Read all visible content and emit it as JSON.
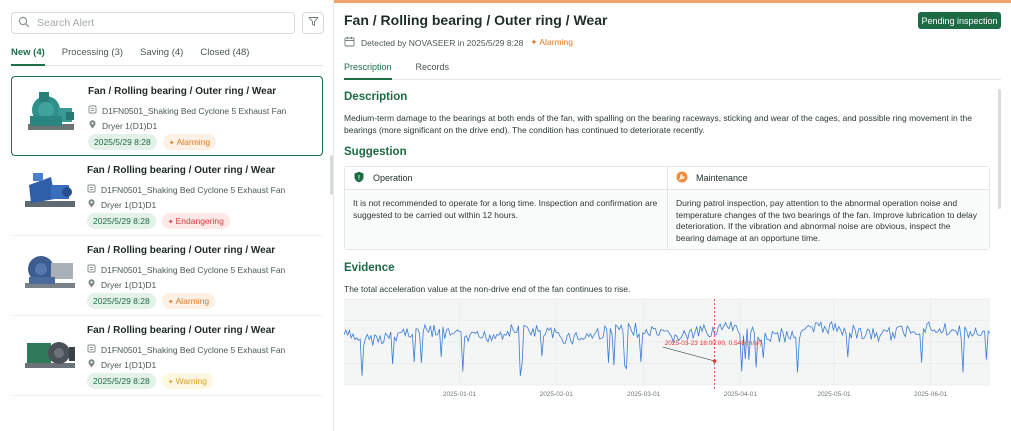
{
  "search": {
    "placeholder": "Search Alert"
  },
  "tabs": [
    {
      "label": "New (4)",
      "active": true
    },
    {
      "label": "Processing (3)",
      "active": false
    },
    {
      "label": "Saving (4)",
      "active": false
    },
    {
      "label": "Closed (48)",
      "active": false
    }
  ],
  "alerts": [
    {
      "title": "Fan / Rolling bearing / Outer ring / Wear",
      "device": "D1FN0501_Shaking Bed Cyclone 5 Exhaust Fan",
      "location": "Dryer 1(D1)D1",
      "date": "2025/5/29 8:28",
      "level": "Alarming",
      "selected": true
    },
    {
      "title": "Fan / Rolling bearing / Outer ring / Wear",
      "device": "D1FN0501_Shaking Bed Cyclone 5 Exhaust Fan",
      "location": "Dryer 1(D1)D1",
      "date": "2025/5/29 8:28",
      "level": "Endangering",
      "selected": false
    },
    {
      "title": "Fan / Rolling bearing / Outer ring / Wear",
      "device": "D1FN0501_Shaking Bed Cyclone 5 Exhaust Fan",
      "location": "Dryer 1(D1)D1",
      "date": "2025/5/29 8:28",
      "level": "Alarming",
      "selected": false
    },
    {
      "title": "Fan / Rolling bearing / Outer ring / Wear",
      "device": "D1FN0501_Shaking Bed Cyclone 5 Exhaust Fan",
      "location": "Dryer 1(D1)D1",
      "date": "2025/5/29 8:28",
      "level": "Warning",
      "selected": false
    }
  ],
  "detail": {
    "title": "Fan / Rolling bearing / Outer ring / Wear",
    "action_label": "Pending inspection",
    "detected_text": "Detected by NOVASEER in 2025/5/29 8:28",
    "status": "Alarming",
    "tabs": [
      {
        "label": "Prescription",
        "active": true
      },
      {
        "label": "Records",
        "active": false
      }
    ],
    "description_heading": "Description",
    "description": "Medium-term damage to the bearings at both ends of the fan, with spalling on the bearing raceways, sticking and wear of the cages, and possible ring movement in the bearings (more significant on the drive end). The condition has continued to deteriorate recently.",
    "suggestion_heading": "Suggestion",
    "operation_label": "Operation",
    "operation_text": "It is not recommended to operate for a long time. Inspection and confirmation are suggested to be carried out within 12 hours.",
    "maintenance_label": "Maintenance",
    "maintenance_text": "During patrol inspection, pay attention to the abnormal operation noise and temperature changes of the two bearings of the fan. Improve lubrication to delay deterioration. If the vibration and abnormal noise are obvious, inspect the bearing damage at an opportune time.",
    "evidence_heading": "Evidence",
    "evidence_text": "The total acceleration value at the non-drive end of the fan continues to rise."
  },
  "colors": {
    "accent": "#1d6b45",
    "alarming": "#e07a24",
    "endangering": "#d93a3a",
    "warning": "#d7a32a",
    "series": "#3a7bd5",
    "marker": "#e03131"
  },
  "chart_data": {
    "type": "line",
    "title": "",
    "xlabel": "",
    "ylabel": "",
    "x_ticks": [
      "2025-01-01",
      "2025-02-01",
      "2025-03-01",
      "2025-04-01",
      "2025-05-01",
      "2025-06-01"
    ],
    "x_range": [
      "2024-11-25",
      "2025-06-20"
    ],
    "annotation": {
      "text": "2025-03-23 18:00:00, 0.548(m/s²)",
      "x": "2025-03-23 18:00:00",
      "y": 0.548
    },
    "series": [
      {
        "values": []
      }
    ],
    "grid": true
  }
}
